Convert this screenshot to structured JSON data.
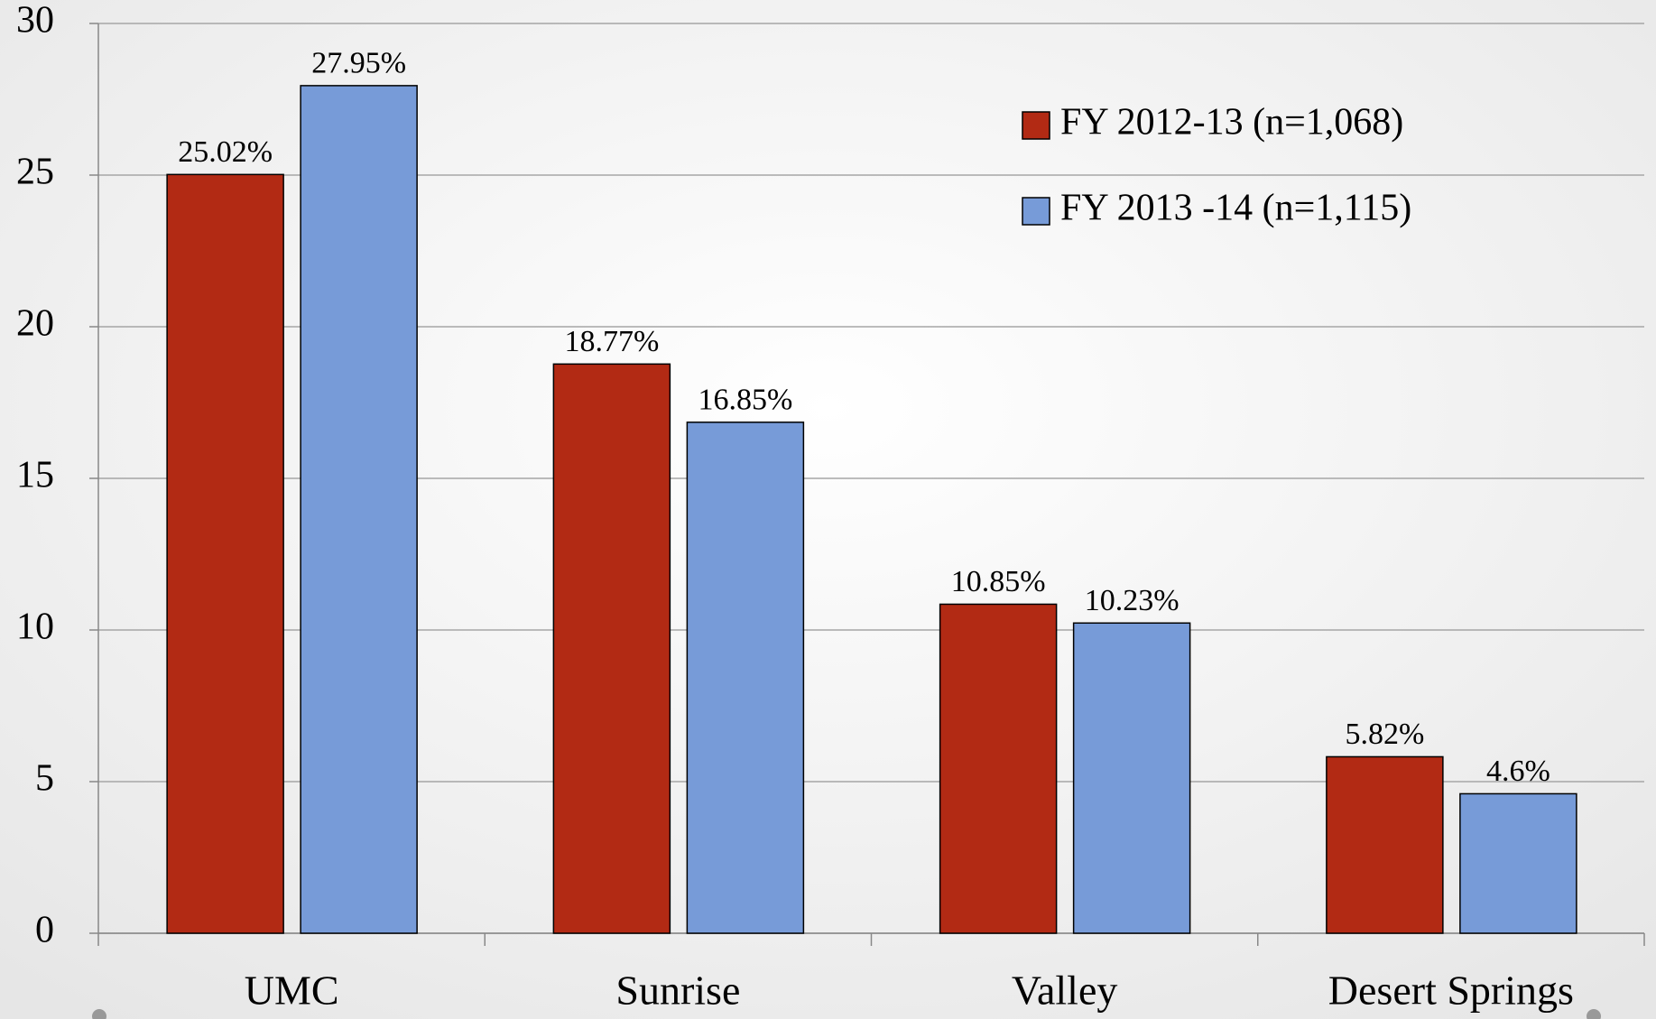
{
  "chart_data": {
    "type": "bar",
    "categories": [
      "UMC",
      "Sunrise",
      "Valley",
      "Desert Springs"
    ],
    "series": [
      {
        "name": "FY 2012-13 (n=1,068)",
        "color": "#b22a14",
        "values": [
          25.02,
          18.77,
          10.85,
          5.82
        ],
        "value_labels": [
          "25.02%",
          "18.77%",
          "10.85%",
          "5.82%"
        ]
      },
      {
        "name": "FY 2013 -14 (n=1,115)",
        "color": "#779bd8",
        "values": [
          27.95,
          16.85,
          10.23,
          4.6
        ],
        "value_labels": [
          "27.95%",
          "16.85%",
          "10.23%",
          "4.6%"
        ]
      }
    ],
    "ylim": [
      0,
      30
    ],
    "yticks": [
      0,
      5,
      10,
      15,
      20,
      25,
      30
    ],
    "grid": true,
    "legend": "top-right"
  }
}
